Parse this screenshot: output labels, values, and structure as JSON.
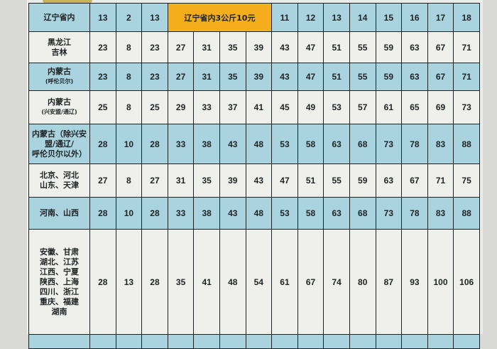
{
  "colors": {
    "blue_row": "#a9d3df",
    "white_row": "#efefec",
    "promo": "#f5ad1c"
  },
  "rows": [
    {
      "label": [
        "辽宁省内"
      ],
      "values": [
        "13",
        "2",
        "13"
      ],
      "promo": "辽宁省内3公斤10元",
      "tail": [
        "11",
        "12",
        "13",
        "14",
        "15",
        "16",
        "17",
        "18"
      ]
    },
    {
      "label": [
        "黑龙江",
        "吉林"
      ],
      "values": [
        "23",
        "8",
        "23",
        "27",
        "31",
        "35",
        "39",
        "43",
        "47",
        "51",
        "55",
        "59",
        "63",
        "67",
        "71"
      ]
    },
    {
      "label": [
        "内蒙古",
        "(呼伦贝尔)"
      ],
      "values": [
        "23",
        "8",
        "23",
        "27",
        "31",
        "35",
        "39",
        "43",
        "47",
        "51",
        "55",
        "59",
        "63",
        "67",
        "71"
      ]
    },
    {
      "label": [
        "内蒙古",
        "(兴安盟/通辽)"
      ],
      "values": [
        "25",
        "8",
        "25",
        "29",
        "33",
        "37",
        "41",
        "45",
        "49",
        "53",
        "57",
        "61",
        "65",
        "69",
        "73"
      ]
    },
    {
      "label": [
        "内蒙古（除兴安",
        "盟/通辽/",
        "呼伦贝尔以外）"
      ],
      "values": [
        "28",
        "10",
        "28",
        "33",
        "38",
        "43",
        "48",
        "53",
        "58",
        "63",
        "68",
        "73",
        "78",
        "83",
        "88"
      ]
    },
    {
      "label": [
        "北京、河北",
        "山东、天津"
      ],
      "values": [
        "27",
        "8",
        "27",
        "31",
        "35",
        "39",
        "43",
        "47",
        "51",
        "55",
        "59",
        "63",
        "67",
        "71",
        "75"
      ]
    },
    {
      "label": [
        "河南、山西"
      ],
      "values": [
        "28",
        "10",
        "28",
        "33",
        "38",
        "43",
        "48",
        "53",
        "58",
        "63",
        "68",
        "73",
        "78",
        "83",
        "88"
      ]
    },
    {
      "label": [
        "安徽、甘肃",
        "湖北、江苏",
        "江西、宁夏",
        "陕西、上海",
        "四川、浙江",
        "重庆、福建",
        "湖南"
      ],
      "values": [
        "28",
        "13",
        "28",
        "35",
        "41",
        "48",
        "54",
        "61",
        "67",
        "74",
        "80",
        "87",
        "93",
        "100",
        "106"
      ]
    }
  ]
}
